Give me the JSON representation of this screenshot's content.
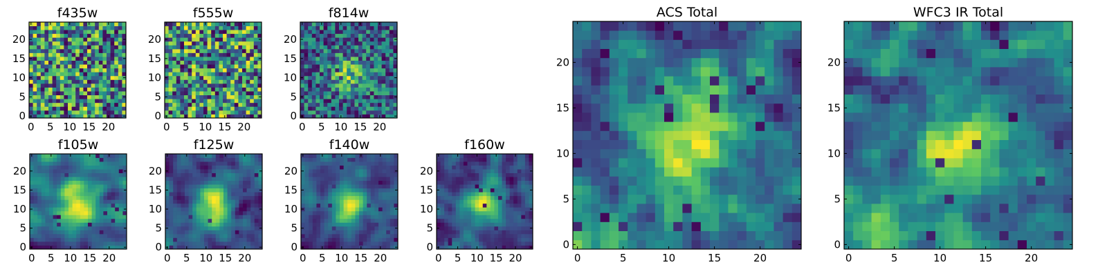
{
  "chart_data": [
    {
      "type": "heatmap",
      "title": "f435w",
      "grid_size": 25,
      "x_ticks": [
        0,
        5,
        10,
        15,
        20
      ],
      "y_ticks": [
        0,
        5,
        10,
        15,
        20
      ],
      "xlim": [
        0,
        24
      ],
      "ylim": [
        0,
        24
      ],
      "colormap": "viridis",
      "value_range": [
        0,
        1
      ],
      "style": "noise",
      "center_peak": false
    },
    {
      "type": "heatmap",
      "title": "f555w",
      "grid_size": 25,
      "x_ticks": [
        0,
        5,
        10,
        15,
        20
      ],
      "y_ticks": [
        0,
        5,
        10,
        15,
        20
      ],
      "xlim": [
        0,
        24
      ],
      "ylim": [
        0,
        24
      ],
      "colormap": "viridis",
      "value_range": [
        0,
        1
      ],
      "style": "noise",
      "center_peak": false
    },
    {
      "type": "heatmap",
      "title": "f814w",
      "grid_size": 25,
      "x_ticks": [
        0,
        5,
        10,
        15,
        20
      ],
      "y_ticks": [
        0,
        5,
        10,
        15,
        20
      ],
      "xlim": [
        0,
        24
      ],
      "ylim": [
        0,
        24
      ],
      "colormap": "viridis",
      "value_range": [
        0,
        1
      ],
      "style": "noise",
      "center_peak": true
    },
    {
      "type": "heatmap",
      "title": "f105w",
      "grid_size": 25,
      "x_ticks": [
        0,
        5,
        10,
        15,
        20
      ],
      "y_ticks": [
        0,
        5,
        10,
        15,
        20
      ],
      "xlim": [
        0,
        24
      ],
      "ylim": [
        0,
        24
      ],
      "colormap": "viridis",
      "value_range": [
        0,
        1
      ],
      "style": "smooth",
      "center_peak": true
    },
    {
      "type": "heatmap",
      "title": "f125w",
      "grid_size": 25,
      "x_ticks": [
        0,
        5,
        10,
        15,
        20
      ],
      "y_ticks": [
        0,
        5,
        10,
        15,
        20
      ],
      "xlim": [
        0,
        24
      ],
      "ylim": [
        0,
        24
      ],
      "colormap": "viridis",
      "value_range": [
        0,
        1
      ],
      "style": "smooth",
      "center_peak": true
    },
    {
      "type": "heatmap",
      "title": "f140w",
      "grid_size": 25,
      "x_ticks": [
        0,
        5,
        10,
        15,
        20
      ],
      "y_ticks": [
        0,
        5,
        10,
        15,
        20
      ],
      "xlim": [
        0,
        24
      ],
      "ylim": [
        0,
        24
      ],
      "colormap": "viridis",
      "value_range": [
        0,
        1
      ],
      "style": "smooth",
      "center_peak": true
    },
    {
      "type": "heatmap",
      "title": "f160w",
      "grid_size": 25,
      "x_ticks": [
        0,
        5,
        10,
        15,
        20
      ],
      "y_ticks": [
        0,
        5,
        10,
        15,
        20
      ],
      "xlim": [
        0,
        24
      ],
      "ylim": [
        0,
        24
      ],
      "colormap": "viridis",
      "value_range": [
        0,
        1
      ],
      "style": "smooth",
      "center_peak": true
    },
    {
      "type": "heatmap",
      "title": "ACS Total",
      "grid_size": 25,
      "x_ticks": [
        0,
        5,
        10,
        15,
        20
      ],
      "y_ticks": [
        0,
        5,
        10,
        15,
        20
      ],
      "xlim": [
        0,
        24
      ],
      "ylim": [
        0,
        24
      ],
      "colormap": "viridis",
      "value_range": [
        0,
        1
      ],
      "style": "large",
      "center_peak": true
    },
    {
      "type": "heatmap",
      "title": "WFC3 IR Total",
      "grid_size": 25,
      "x_ticks": [
        0,
        5,
        10,
        15,
        20
      ],
      "y_ticks": [
        0,
        5,
        10,
        15,
        20
      ],
      "xlim": [
        0,
        24
      ],
      "ylim": [
        0,
        24
      ],
      "colormap": "viridis",
      "value_range": [
        0,
        1
      ],
      "style": "large",
      "center_peak": true
    }
  ],
  "colors": {
    "viridis_stops": [
      "#440154",
      "#3b528b",
      "#21918c",
      "#5ec962",
      "#fde725"
    ]
  }
}
